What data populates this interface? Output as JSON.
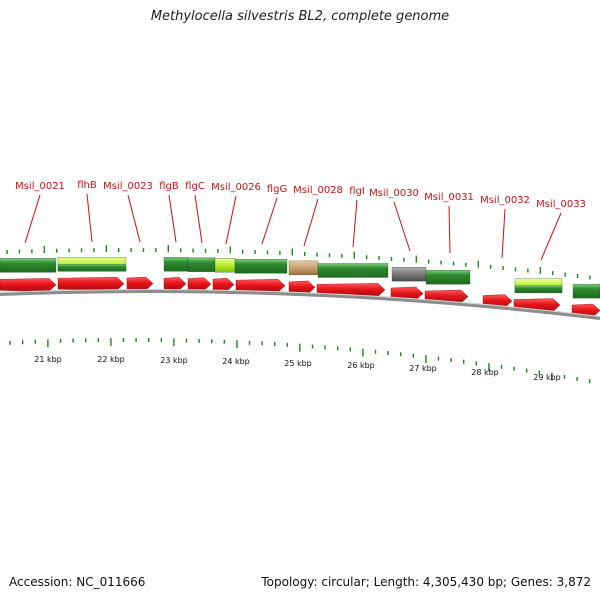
{
  "title": "Methylocella silvestris BL2, complete genome",
  "footer": {
    "accession": "Accession: NC_011666",
    "summary": "Topology: circular; Length: 4,305,430 bp; Genes: 3,872"
  },
  "genome_map": {
    "scale_labels": [
      "21 kbp",
      "22 kbp",
      "23 kbp",
      "24 kbp",
      "25 kbp",
      "26 kbp",
      "27 kbp",
      "28 kbp",
      "29 kbp"
    ],
    "gene_labels": [
      "Msil_0021",
      "flhB",
      "Msil_0023",
      "flgB",
      "flgC",
      "Msil_0026",
      "flgG",
      "Msil_0028",
      "flgI",
      "Msil_0030",
      "Msil_0031",
      "Msil_0032",
      "Msil_0033"
    ],
    "colors": {
      "gene_arrow": "#e8141b",
      "label_red": "#cc1111",
      "backbone": "#8c8c8c",
      "tick": "#1a8a1a",
      "green_dark": "#2f8a2f",
      "green_light": "#b8f030",
      "tan": "#c8a070",
      "grey": "#7a7a7a"
    }
  }
}
